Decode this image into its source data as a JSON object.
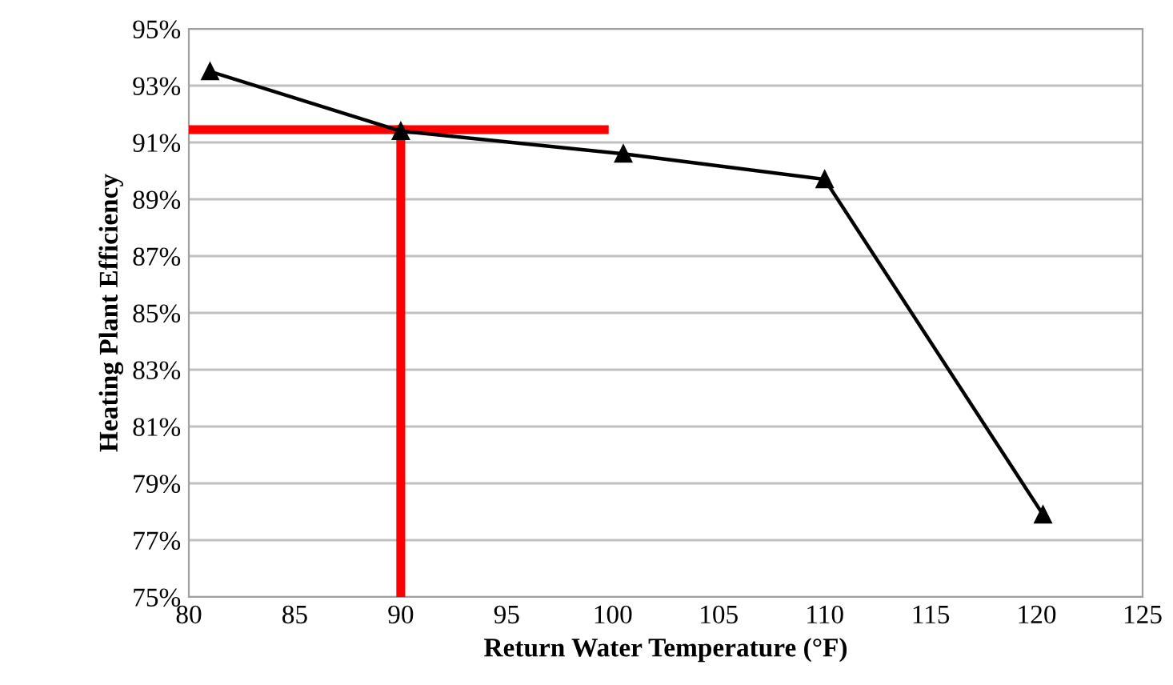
{
  "chart_data": {
    "type": "line",
    "xlabel": "Return Water Temperature (°F)",
    "ylabel": "Heating Plant Efficiency",
    "series": [
      {
        "color": "#000000",
        "marker": "triangle",
        "x": [
          81,
          90,
          100.5,
          110,
          120.3
        ],
        "values": [
          93.5,
          91.4,
          90.6,
          89.7,
          77.9
        ]
      },
      {
        "color": "#ff0000",
        "marker": "none",
        "x": [
          80,
          99.6
        ],
        "values": [
          91.45,
          91.45
        ]
      },
      {
        "color": "#ff0000",
        "marker": "none",
        "x": [
          90,
          90
        ],
        "values": [
          75,
          91.45
        ]
      }
    ],
    "xlim": [
      80,
      125
    ],
    "xticks": [
      80,
      85,
      90,
      95,
      100,
      105,
      110,
      115,
      120,
      125
    ],
    "ylim": [
      75,
      95
    ],
    "yticks": [
      {
        "value": 75,
        "label": "75%"
      },
      {
        "value": 77,
        "label": "77%"
      },
      {
        "value": 79,
        "label": "79%"
      },
      {
        "value": 81,
        "label": "81%"
      },
      {
        "value": 83,
        "label": "83%"
      },
      {
        "value": 85,
        "label": "85%"
      },
      {
        "value": 87,
        "label": "87%"
      },
      {
        "value": 89,
        "label": "89%"
      },
      {
        "value": 91,
        "label": "91%"
      },
      {
        "value": 93,
        "label": "93%"
      },
      {
        "value": 95,
        "label": "95%"
      }
    ],
    "grid": "y",
    "legend": false
  }
}
